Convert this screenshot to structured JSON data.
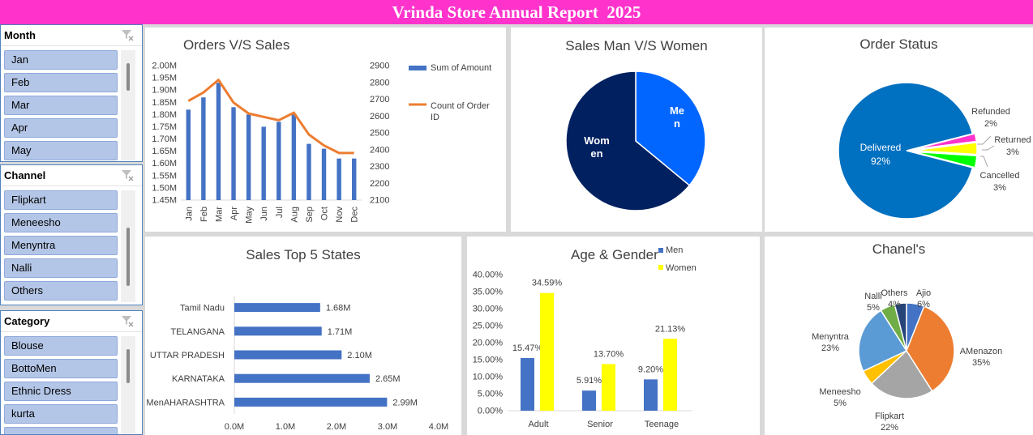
{
  "banner": {
    "title": "Vrinda Store Annual Report  2025"
  },
  "slicers": [
    {
      "title": "Month",
      "items": [
        "Jan",
        "Feb",
        "Mar",
        "Apr",
        "May"
      ],
      "clear_icon": "clear-filter-icon"
    },
    {
      "title": "Channel",
      "items": [
        "Flipkart",
        "Meneesho",
        "Menyntra",
        "Nalli",
        "Others"
      ],
      "clear_icon": "clear-filter-icon"
    },
    {
      "title": "Category",
      "items": [
        "Blouse",
        "BottoMen",
        "Ethnic Dress",
        "kurta"
      ],
      "clear_icon": "clear-filter-icon"
    }
  ],
  "colors": {
    "banner": "#ff33cc",
    "bar_blue": "#4472c4",
    "line_orange": "#ed7d31",
    "women_navy": "#002060",
    "men_blue": "#0066ff",
    "delivered_blue": "#0070c0",
    "refunded_pink": "#ff33cc",
    "returned_yellow": "#ffff00",
    "cancelled_green": "#00ff00",
    "age_women_yellow": "#ffff00"
  },
  "chart_data": [
    {
      "id": "orders_sales",
      "type": "bar",
      "title": "Orders V/S Sales",
      "categories": [
        "Jan",
        "Feb",
        "Mar",
        "Apr",
        "May",
        "Jun",
        "Jul",
        "Aug",
        "Sep",
        "Oct",
        "Nov",
        "Dec"
      ],
      "series": [
        {
          "name": "Sum of Amount",
          "type": "bar",
          "axis": "left",
          "values": [
            1.82,
            1.87,
            1.93,
            1.83,
            1.8,
            1.75,
            1.77,
            1.8,
            1.68,
            1.66,
            1.62,
            1.62
          ]
        },
        {
          "name": "Count of Order ID",
          "type": "line",
          "axis": "right",
          "values": [
            2690,
            2740,
            2815,
            2680,
            2615,
            2595,
            2575,
            2620,
            2490,
            2425,
            2380,
            2380
          ]
        }
      ],
      "y_left": {
        "min": 1.45,
        "max": 2.0,
        "ticks": [
          "2.00M",
          "1.95M",
          "1.90M",
          "1.85M",
          "1.80M",
          "1.75M",
          "1.70M",
          "1.65M",
          "1.60M",
          "1.55M",
          "1.50M",
          "1.45M"
        ]
      },
      "y_right": {
        "min": 2100,
        "max": 2900,
        "ticks": [
          "2900",
          "2800",
          "2700",
          "2600",
          "2500",
          "2400",
          "2300",
          "2200",
          "2100"
        ]
      },
      "legend": "right"
    },
    {
      "id": "sales_gender",
      "type": "pie",
      "title": "Sales Man V/S Women",
      "slices": [
        {
          "label": "Men",
          "value": 36,
          "display": "Me\nn"
        },
        {
          "label": "Women",
          "value": 64,
          "display": "Wom\nen"
        }
      ]
    },
    {
      "id": "order_status",
      "type": "pie",
      "title": "Order Status",
      "slices": [
        {
          "label": "Delivered",
          "value": 92,
          "pct": "92%"
        },
        {
          "label": "Refunded",
          "value": 2,
          "pct": "2%"
        },
        {
          "label": "Returned",
          "value": 3,
          "pct": "3%"
        },
        {
          "label": "Cancelled",
          "value": 3,
          "pct": "3%"
        }
      ]
    },
    {
      "id": "top_states",
      "type": "bar",
      "orientation": "horizontal",
      "title": "Sales Top 5 States",
      "categories": [
        "Tamil Nadu",
        "TELANGANA",
        "UTTAR PRADESH",
        "KARNATAKA",
        "MenAHARASHTRA"
      ],
      "values": [
        1.68,
        1.71,
        2.1,
        2.65,
        2.99
      ],
      "value_labels": [
        "1.68M",
        "1.71M",
        "2.10M",
        "2.65M",
        "2.99M"
      ],
      "xlim": [
        0,
        4
      ],
      "x_ticks": [
        "0.0M",
        "1.0M",
        "2.0M",
        "3.0M",
        "4.0M"
      ]
    },
    {
      "id": "age_gender",
      "type": "bar",
      "title": "Age & Gender",
      "categories": [
        "Adult",
        "Senior",
        "Teenage"
      ],
      "series": [
        {
          "name": "Men",
          "values": [
            15.47,
            5.91,
            9.2
          ],
          "labels": [
            "15.47%",
            "5.91%",
            "9.20%"
          ]
        },
        {
          "name": "Women",
          "values": [
            34.59,
            13.7,
            21.13
          ],
          "labels": [
            "34.59%",
            "13.70%",
            "21.13%"
          ]
        }
      ],
      "ylim": [
        0,
        40
      ],
      "y_ticks": [
        "40.00%",
        "35.00%",
        "30.00%",
        "25.00%",
        "20.00%",
        "15.00%",
        "10.00%",
        "5.00%",
        "0.00%"
      ],
      "legend": "top"
    },
    {
      "id": "channels",
      "type": "pie",
      "title": "Chanel's",
      "slices": [
        {
          "label": "Ajio",
          "value": 6,
          "pct": "6%",
          "color": "#4472c4"
        },
        {
          "label": "AMenazon",
          "value": 35,
          "pct": "35%",
          "color": "#ed7d31"
        },
        {
          "label": "Flipkart",
          "value": 22,
          "pct": "22%",
          "color": "#a5a5a5"
        },
        {
          "label": "Meneesho",
          "value": 5,
          "pct": "5%",
          "color": "#ffc000"
        },
        {
          "label": "Menyntra",
          "value": 23,
          "pct": "23%",
          "color": "#5b9bd5"
        },
        {
          "label": "Nalli",
          "value": 5,
          "pct": "5%",
          "color": "#70ad47"
        },
        {
          "label": "Others",
          "value": 4,
          "pct": "4%",
          "color": "#264478"
        }
      ]
    }
  ]
}
